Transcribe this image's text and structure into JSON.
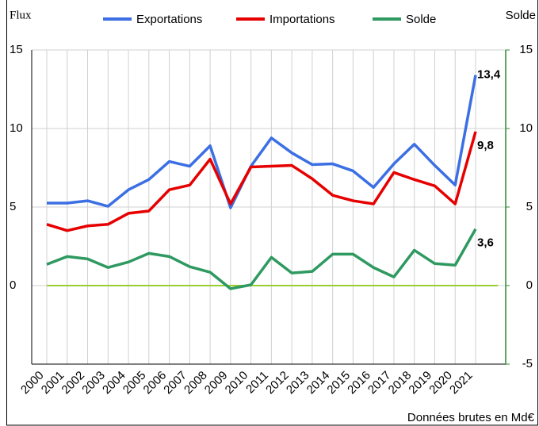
{
  "chart_data": {
    "type": "line",
    "y_label": "Flux",
    "y2_label": "Solde",
    "note": "Données brutes en Md€",
    "categories": [
      "2000",
      "2001",
      "2002",
      "2003",
      "2004",
      "2005",
      "2006",
      "2007",
      "2008",
      "2009",
      "2010",
      "2011",
      "2012",
      "2013",
      "2014",
      "2015",
      "2016",
      "2017",
      "2018",
      "2019",
      "2020",
      "2021"
    ],
    "series": [
      {
        "name": "Exportations",
        "color": "#3b6fe3",
        "values": [
          5.25,
          5.25,
          5.4,
          5.05,
          6.1,
          6.75,
          7.9,
          7.6,
          8.9,
          4.95,
          7.6,
          9.4,
          8.45,
          7.7,
          7.75,
          7.3,
          6.25,
          7.75,
          9.0,
          7.65,
          6.4,
          13.4
        ],
        "value_labels": [
          null,
          null,
          null,
          null,
          null,
          null,
          null,
          null,
          null,
          null,
          null,
          null,
          null,
          null,
          null,
          null,
          null,
          null,
          null,
          null,
          null,
          "13,4"
        ],
        "label_color": "#2233cc"
      },
      {
        "name": "Importations",
        "color": "#e60000",
        "values": [
          3.9,
          3.5,
          3.8,
          3.9,
          4.6,
          4.75,
          6.1,
          6.4,
          8.05,
          5.2,
          7.55,
          7.6,
          7.65,
          6.8,
          5.75,
          5.4,
          5.2,
          7.2,
          6.75,
          6.35,
          5.2,
          9.8
        ],
        "value_labels": [
          null,
          null,
          null,
          null,
          null,
          null,
          null,
          null,
          null,
          null,
          null,
          null,
          null,
          null,
          null,
          null,
          null,
          null,
          null,
          null,
          null,
          "9,8"
        ],
        "label_color": "#e60000"
      },
      {
        "name": "Solde",
        "color": "#2e9960",
        "values": [
          1.35,
          1.85,
          1.7,
          1.15,
          1.5,
          2.05,
          1.85,
          1.2,
          0.85,
          -0.2,
          0.05,
          1.8,
          0.8,
          0.9,
          2.0,
          2.0,
          1.15,
          0.55,
          2.25,
          1.4,
          1.3,
          3.6
        ],
        "value_labels": [
          null,
          null,
          null,
          null,
          null,
          null,
          null,
          null,
          null,
          null,
          null,
          null,
          null,
          null,
          null,
          null,
          null,
          null,
          null,
          null,
          null,
          "3,6"
        ],
        "label_color": "#2e8b2e"
      }
    ],
    "ylim": [
      -5,
      15
    ],
    "yticks": [
      0,
      5,
      10,
      15
    ],
    "y2lim": [
      -5,
      15
    ],
    "y2ticks": [
      -5,
      0,
      5,
      10,
      15
    ],
    "y2_color": "#2e8b2e",
    "zero_line_color": "#9acd32",
    "grid": true
  }
}
